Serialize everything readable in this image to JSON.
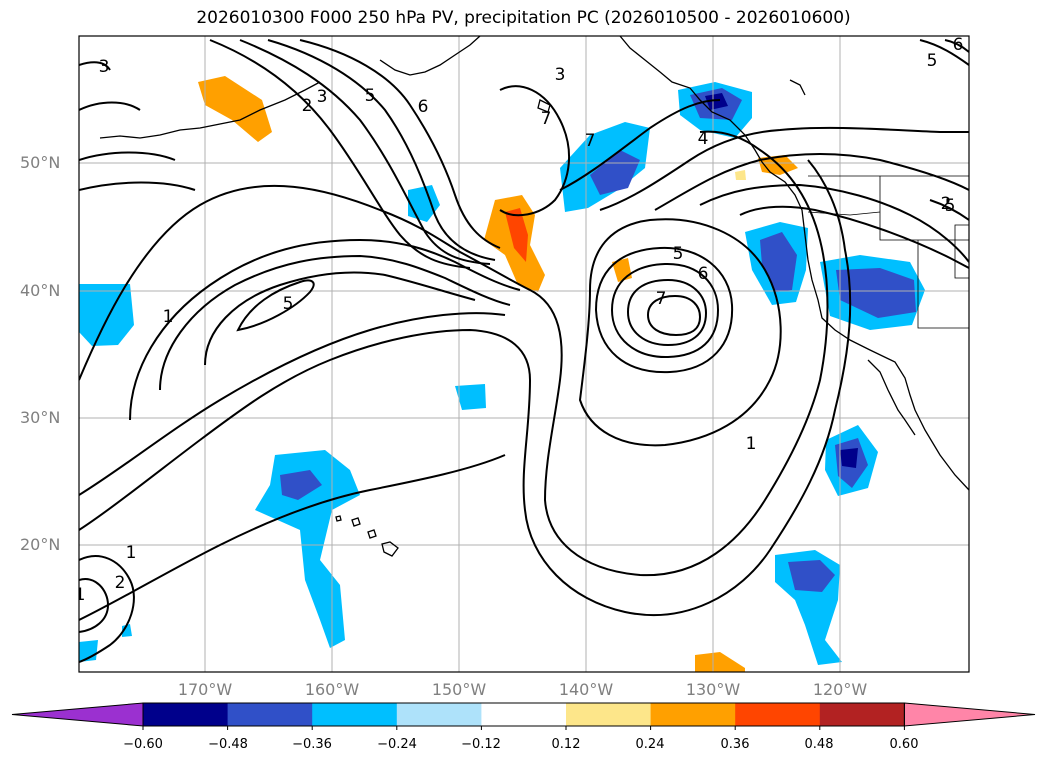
{
  "title": "2026010300 F000 250 hPa PV, precipitation PC (2026010500 - 2026010600)",
  "lat_labels": [
    "50°N",
    "40°N",
    "30°N",
    "20°N"
  ],
  "lon_labels": [
    "170°W",
    "160°W",
    "150°W",
    "140°W",
    "130°W",
    "120°W"
  ],
  "contour_labels": [
    "3",
    "2",
    "3",
    "5",
    "6",
    "7",
    "7",
    "4",
    "1",
    "5",
    "1",
    "5",
    "6",
    "7",
    "1",
    "1",
    "2",
    "5",
    "5",
    "6",
    "2",
    "3"
  ],
  "colorbar": {
    "ticks": [
      "−0.60",
      "−0.48",
      "−0.36",
      "−0.24",
      "−0.12",
      "0.12",
      "0.24",
      "0.36",
      "0.48",
      "0.60"
    ],
    "colors": [
      "#9b30d0",
      "#00008b",
      "#3050c8",
      "#00bfff",
      "#aee2fa",
      "#ffffff",
      "#fde68a",
      "#ffa000",
      "#ff4500",
      "#b22222",
      "#ff85a8"
    ]
  }
}
